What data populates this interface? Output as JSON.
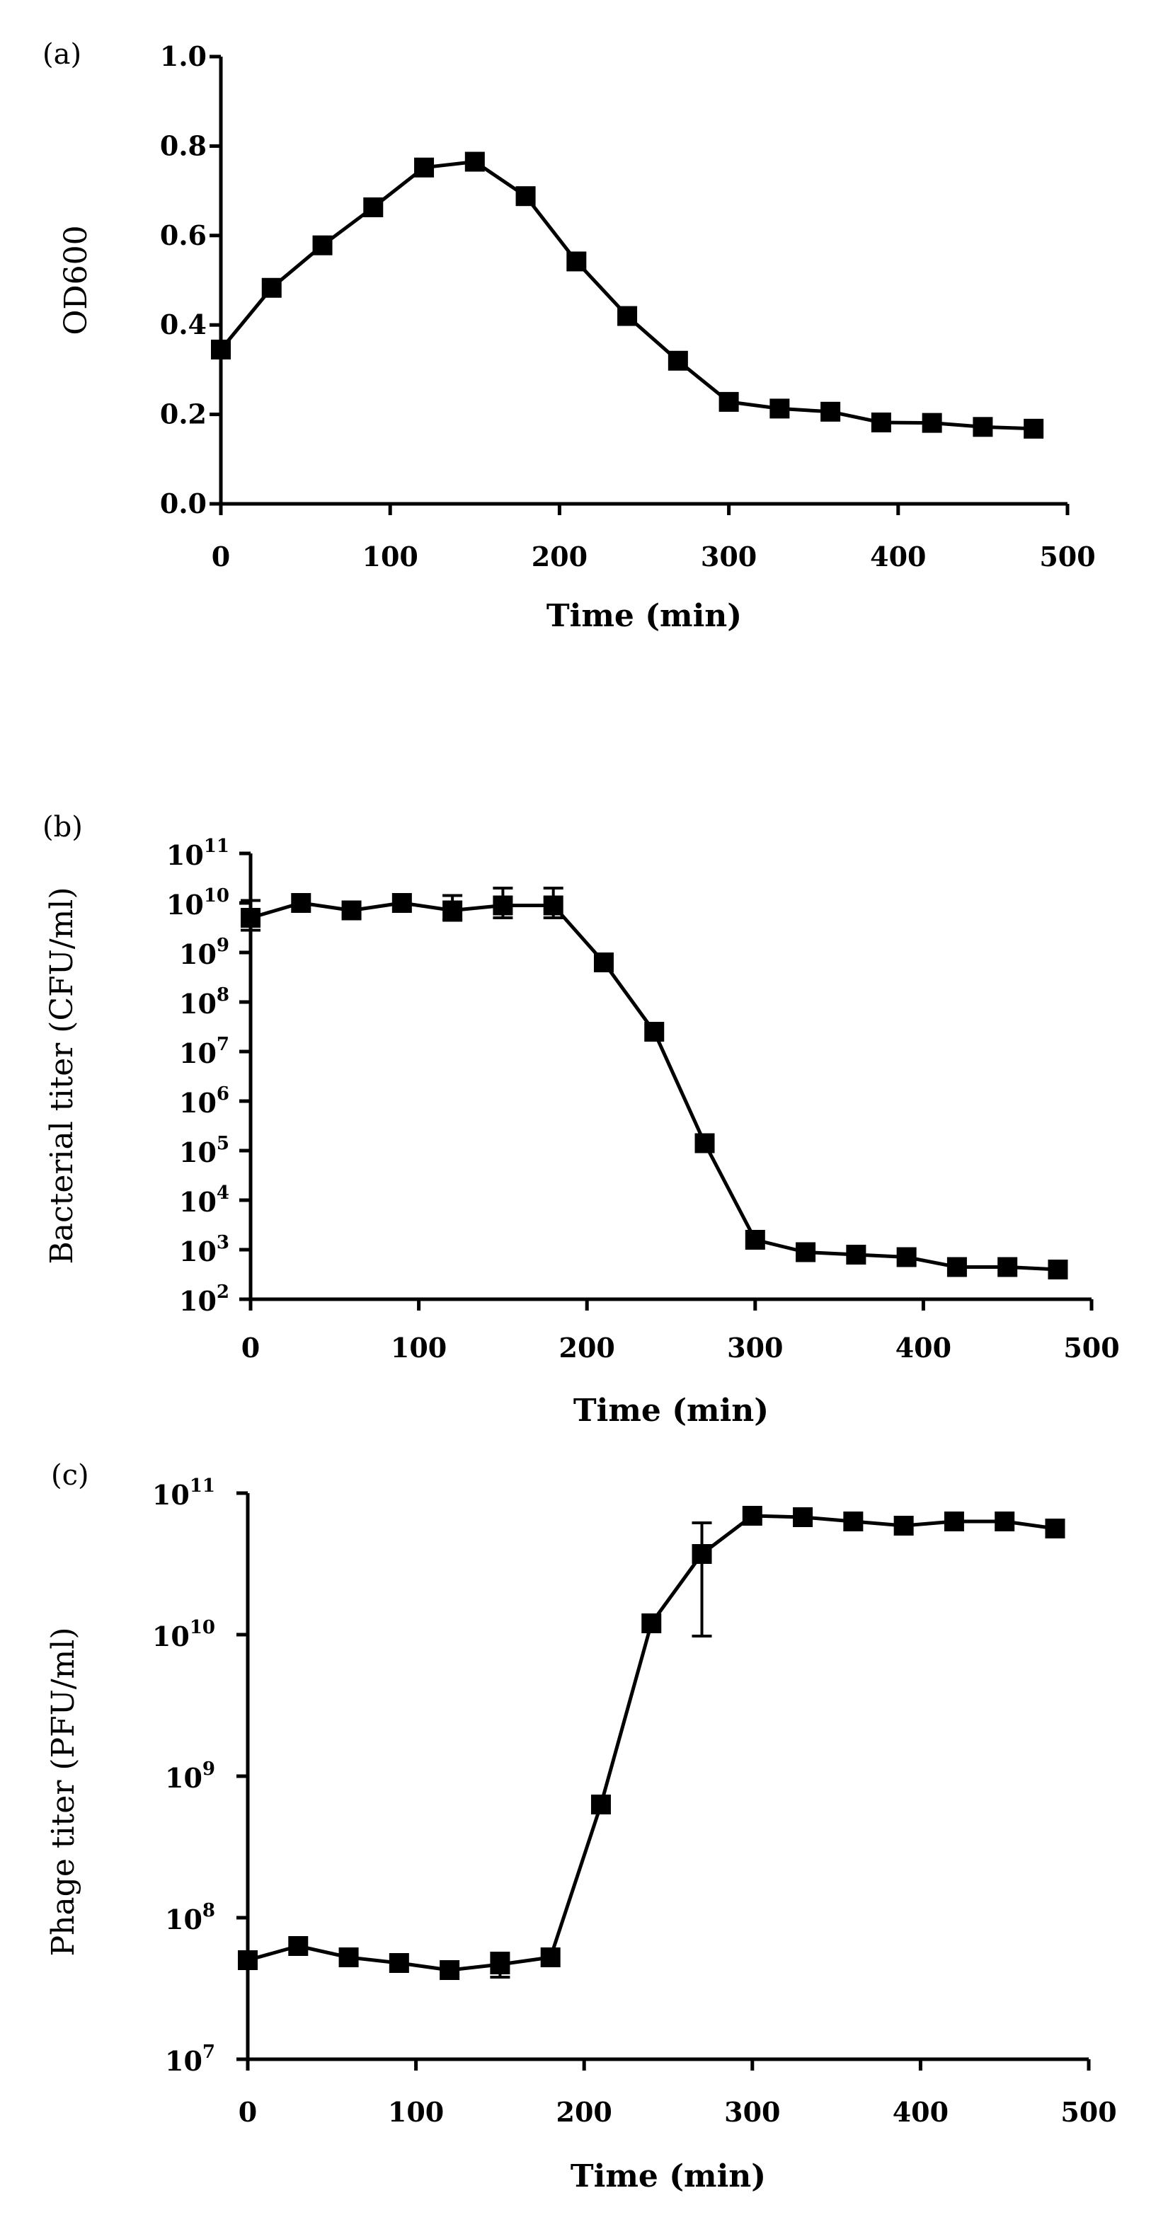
{
  "chart_data": [
    {
      "type": "line",
      "panel_label": "(a)",
      "title": "",
      "xlabel": "Time (min)",
      "ylabel": "OD600",
      "xlim": [
        0,
        500
      ],
      "ylim": [
        0.0,
        1.0
      ],
      "yscale": "linear",
      "xticks": [
        "0",
        "100",
        "200",
        "300",
        "400",
        "500"
      ],
      "yticks": [
        "0.0",
        "0.2",
        "0.4",
        "0.6",
        "0.8",
        "1.0"
      ],
      "grid": false,
      "legend": "none",
      "series": [
        {
          "name": "OD600",
          "marker": "square",
          "x": [
            0,
            30,
            60,
            90,
            120,
            150,
            180,
            210,
            240,
            270,
            300,
            330,
            360,
            390,
            420,
            450,
            480
          ],
          "values": [
            0.345,
            0.483,
            0.578,
            0.663,
            0.752,
            0.765,
            0.688,
            0.542,
            0.42,
            0.32,
            0.228,
            0.213,
            0.206,
            0.182,
            0.181,
            0.172,
            0.168
          ]
        }
      ]
    },
    {
      "type": "line",
      "panel_label": "(b)",
      "title": "",
      "xlabel": "Time (min)",
      "ylabel": "Bacterial titer (CFU/ml)",
      "xlim": [
        0,
        500
      ],
      "ylim": [
        100,
        100000000000
      ],
      "yscale": "log",
      "xticks": [
        "0",
        "100",
        "200",
        "300",
        "400",
        "500"
      ],
      "yticks": [
        {
          "base": "10",
          "exp": "2"
        },
        {
          "base": "10",
          "exp": "3"
        },
        {
          "base": "10",
          "exp": "4"
        },
        {
          "base": "10",
          "exp": "5"
        },
        {
          "base": "10",
          "exp": "6"
        },
        {
          "base": "10",
          "exp": "7"
        },
        {
          "base": "10",
          "exp": "8"
        },
        {
          "base": "10",
          "exp": "9"
        },
        {
          "base": "10",
          "exp": "10"
        },
        {
          "base": "10",
          "exp": "11"
        }
      ],
      "grid": false,
      "legend": "none",
      "series": [
        {
          "name": "Bacterial titer",
          "marker": "square",
          "x": [
            0,
            30,
            60,
            90,
            120,
            150,
            180,
            210,
            240,
            270,
            300,
            330,
            360,
            390,
            420,
            450,
            480
          ],
          "log10_values": [
            9.7,
            10.0,
            9.85,
            10.0,
            9.85,
            9.95,
            9.95,
            8.8,
            7.4,
            5.15,
            3.2,
            2.95,
            2.9,
            2.85,
            2.65,
            2.65,
            2.6
          ],
          "error_bars": [
            {
              "x": 0,
              "log10_low": 9.45,
              "log10_high": 10.05
            },
            {
              "x": 120,
              "log10_low": 9.65,
              "log10_high": 10.15
            },
            {
              "x": 150,
              "log10_low": 9.7,
              "log10_high": 10.3
            },
            {
              "x": 180,
              "log10_low": 9.7,
              "log10_high": 10.3
            }
          ]
        }
      ]
    },
    {
      "type": "line",
      "panel_label": "(c)",
      "title": "",
      "xlabel": "Time (min)",
      "ylabel": "Phage titer (PFU/ml)",
      "xlim": [
        0,
        500
      ],
      "ylim": [
        10000000,
        100000000000
      ],
      "yscale": "log",
      "xticks": [
        "0",
        "100",
        "200",
        "300",
        "400",
        "500"
      ],
      "yticks": [
        {
          "base": "10",
          "exp": "7"
        },
        {
          "base": "10",
          "exp": "8"
        },
        {
          "base": "10",
          "exp": "9"
        },
        {
          "base": "10",
          "exp": "10"
        },
        {
          "base": "10",
          "exp": "11"
        }
      ],
      "grid": false,
      "legend": "none",
      "series": [
        {
          "name": "Phage titer",
          "marker": "square",
          "x": [
            0,
            30,
            60,
            90,
            120,
            150,
            180,
            210,
            240,
            270,
            300,
            330,
            360,
            390,
            420,
            450,
            480
          ],
          "log10_values": [
            7.7,
            7.8,
            7.72,
            7.68,
            7.63,
            7.67,
            7.72,
            8.8,
            10.08,
            10.57,
            10.84,
            10.83,
            10.8,
            10.77,
            10.8,
            10.8,
            10.75
          ],
          "error_bars": [
            {
              "x": 150,
              "log10_low": 7.58,
              "log10_high": 7.75
            },
            {
              "x": 270,
              "log10_low": 9.99,
              "log10_high": 10.79
            }
          ]
        }
      ]
    }
  ]
}
